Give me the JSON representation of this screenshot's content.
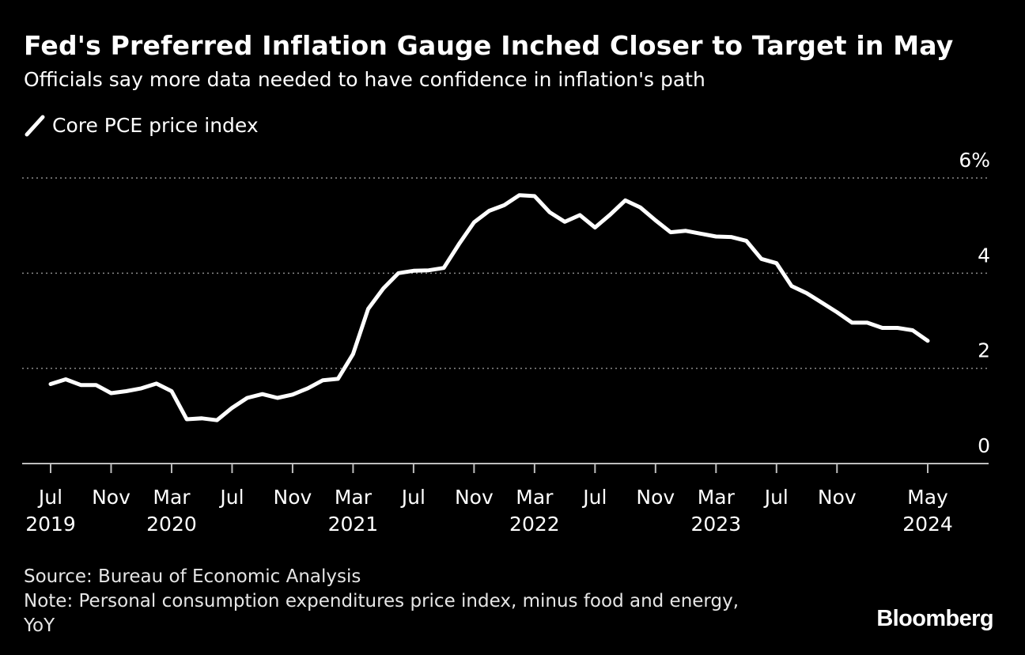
{
  "header": {
    "title": "Fed's Preferred Inflation Gauge Inched Closer to Target in May",
    "subtitle": "Officials say more data needed to have confidence in inflation's path"
  },
  "legend": {
    "label": "Core PCE price index",
    "icon": "line-swatch-icon"
  },
  "footer": {
    "source": "Source: Bureau of Economic Analysis",
    "note_line1": "Note: Personal consumption expenditures price index, minus food and energy,",
    "note_line2": "YoY",
    "brand": "Bloomberg"
  },
  "colors": {
    "background": "#000000",
    "line": "#ffffff",
    "grid": "#8a8a8a",
    "axis": "#bdbdbd"
  },
  "chart_data": {
    "type": "line",
    "title": "Fed's Preferred Inflation Gauge Inched Closer to Target in May",
    "subtitle": "Officials say more data needed to have confidence in inflation's path",
    "xlabel": "",
    "ylabel": "",
    "ylim": [
      0,
      6
    ],
    "yticks": [
      {
        "value": 0,
        "label": "0"
      },
      {
        "value": 2,
        "label": "2"
      },
      {
        "value": 4,
        "label": "4"
      },
      {
        "value": 6,
        "label": "6%"
      }
    ],
    "y_axis_side": "right",
    "grid": "horizontal dotted",
    "legend_position": "top-left",
    "xticks": [
      {
        "date": "2019-07",
        "month": "Jul",
        "year": "2019"
      },
      {
        "date": "2019-11",
        "month": "Nov",
        "year": ""
      },
      {
        "date": "2020-03",
        "month": "Mar",
        "year": "2020"
      },
      {
        "date": "2020-07",
        "month": "Jul",
        "year": ""
      },
      {
        "date": "2020-11",
        "month": "Nov",
        "year": ""
      },
      {
        "date": "2021-03",
        "month": "Mar",
        "year": "2021"
      },
      {
        "date": "2021-07",
        "month": "Jul",
        "year": ""
      },
      {
        "date": "2021-11",
        "month": "Nov",
        "year": ""
      },
      {
        "date": "2022-03",
        "month": "Mar",
        "year": "2022"
      },
      {
        "date": "2022-07",
        "month": "Jul",
        "year": ""
      },
      {
        "date": "2022-11",
        "month": "Nov",
        "year": ""
      },
      {
        "date": "2023-03",
        "month": "Mar",
        "year": "2023"
      },
      {
        "date": "2023-07",
        "month": "Jul",
        "year": ""
      },
      {
        "date": "2023-11",
        "month": "Nov",
        "year": ""
      },
      {
        "date": "2024-05",
        "month": "May",
        "year": "2024"
      }
    ],
    "series": [
      {
        "name": "Core PCE price index",
        "x": [
          "2019-07",
          "2019-08",
          "2019-09",
          "2019-10",
          "2019-11",
          "2019-12",
          "2020-01",
          "2020-02",
          "2020-03",
          "2020-04",
          "2020-05",
          "2020-06",
          "2020-07",
          "2020-08",
          "2020-09",
          "2020-10",
          "2020-11",
          "2020-12",
          "2021-01",
          "2021-02",
          "2021-03",
          "2021-04",
          "2021-05",
          "2021-06",
          "2021-07",
          "2021-08",
          "2021-09",
          "2021-10",
          "2021-11",
          "2021-12",
          "2022-01",
          "2022-02",
          "2022-03",
          "2022-04",
          "2022-05",
          "2022-06",
          "2022-07",
          "2022-08",
          "2022-09",
          "2022-10",
          "2022-11",
          "2022-12",
          "2023-01",
          "2023-02",
          "2023-03",
          "2023-04",
          "2023-05",
          "2023-06",
          "2023-07",
          "2023-08",
          "2023-09",
          "2023-10",
          "2023-11",
          "2023-12",
          "2024-01",
          "2024-02",
          "2024-03",
          "2024-04",
          "2024-05"
        ],
        "values": [
          1.67,
          1.77,
          1.65,
          1.65,
          1.48,
          1.52,
          1.58,
          1.68,
          1.52,
          0.93,
          0.95,
          0.91,
          1.17,
          1.38,
          1.46,
          1.38,
          1.45,
          1.58,
          1.75,
          1.78,
          2.3,
          3.25,
          3.68,
          4.0,
          4.05,
          4.06,
          4.11,
          4.61,
          5.07,
          5.31,
          5.43,
          5.64,
          5.62,
          5.28,
          5.08,
          5.22,
          4.96,
          5.23,
          5.53,
          5.38,
          5.11,
          4.86,
          4.89,
          4.83,
          4.77,
          4.76,
          4.68,
          4.3,
          4.21,
          3.73,
          3.58,
          3.38,
          3.18,
          2.96,
          2.96,
          2.85,
          2.85,
          2.8,
          2.58
        ]
      }
    ]
  }
}
